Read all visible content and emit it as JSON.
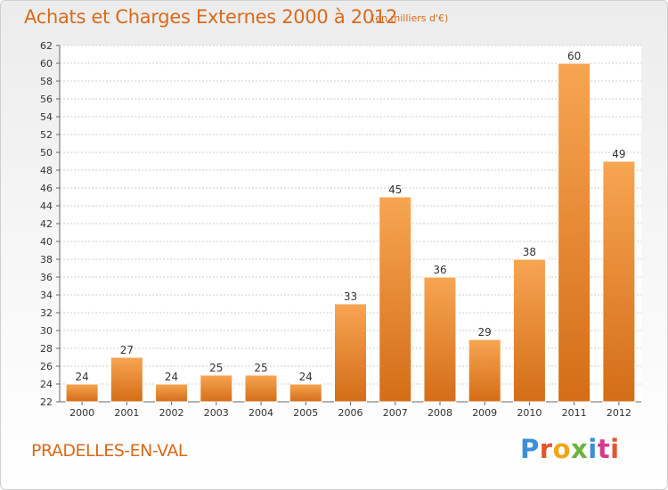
{
  "header": {
    "title": "Achats et Charges Externes 2000 à 2012",
    "unit": "(en milliers d'€)"
  },
  "footer": {
    "place": "PRADELLES-EN-VAL",
    "brand": "Proxiti",
    "brand_colors": [
      "#3a8fd6",
      "#e2562c",
      "#f2a51a",
      "#6bb33e",
      "#3a8fd6",
      "#d63a8c",
      "#e2562c"
    ]
  },
  "colors": {
    "bar_top": "#f7a552",
    "bar_bottom": "#d46d17",
    "grid": "#cccccc",
    "axis": "#666666",
    "accent": "#d96a1a"
  },
  "chart_data": {
    "type": "bar",
    "title": "Achats et Charges Externes 2000 à 2012",
    "subtitle": "(en milliers d'€)",
    "categories": [
      "2000",
      "2001",
      "2002",
      "2003",
      "2004",
      "2005",
      "2006",
      "2007",
      "2008",
      "2009",
      "2010",
      "2011",
      "2012"
    ],
    "values": [
      24,
      27,
      24,
      25,
      25,
      24,
      33,
      45,
      36,
      29,
      38,
      60,
      49
    ],
    "ylim": [
      22,
      62
    ],
    "ytick_step": 2,
    "grid": true,
    "xlabel": "",
    "ylabel": ""
  }
}
